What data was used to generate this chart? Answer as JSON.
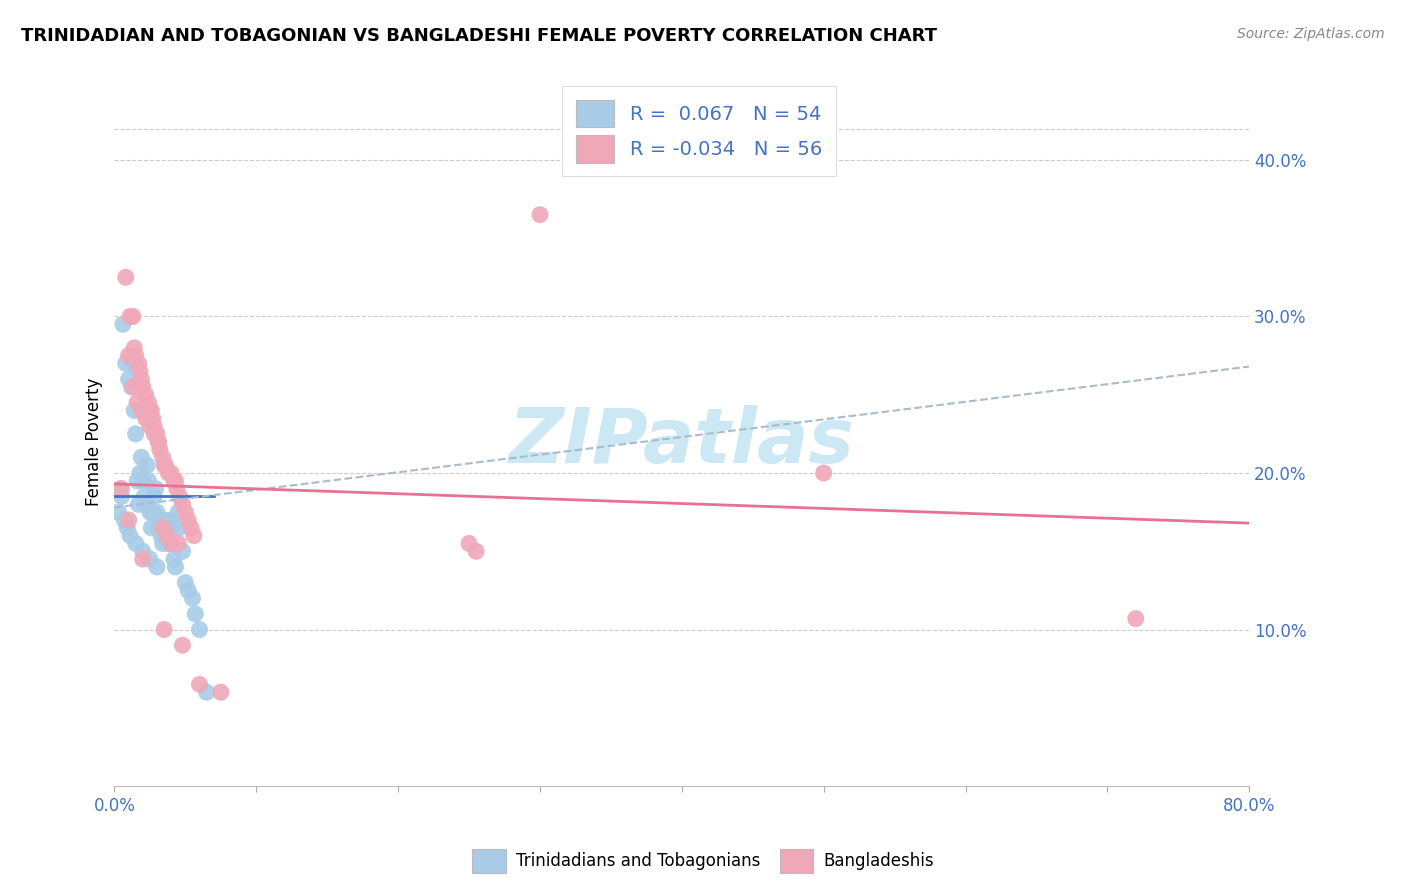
{
  "title": "TRINIDADIAN AND TOBAGONIAN VS BANGLADESHI FEMALE POVERTY CORRELATION CHART",
  "source": "Source: ZipAtlas.com",
  "ylabel": "Female Poverty",
  "yticks": [
    0.1,
    0.2,
    0.3,
    0.4
  ],
  "ytick_labels": [
    "10.0%",
    "20.0%",
    "30.0%",
    "40.0%"
  ],
  "xlim": [
    0.0,
    0.8
  ],
  "ylim": [
    0.0,
    0.44
  ],
  "legend1_r": "0.067",
  "legend1_n": "54",
  "legend2_r": "-0.034",
  "legend2_n": "56",
  "color_blue": "#A8CCE8",
  "color_pink": "#F0A8B8",
  "color_trend_blue_solid": "#4472C4",
  "color_trend_blue_dashed": "#AACCDD",
  "color_trend_pink": "#E87090",
  "watermark": "ZIPatlas",
  "watermark_color": "#CCE8F4",
  "blue_x": [
    0.004,
    0.006,
    0.008,
    0.01,
    0.012,
    0.013,
    0.014,
    0.015,
    0.016,
    0.017,
    0.018,
    0.019,
    0.02,
    0.021,
    0.022,
    0.023,
    0.024,
    0.025,
    0.026,
    0.027,
    0.028,
    0.029,
    0.03,
    0.031,
    0.032,
    0.033,
    0.034,
    0.035,
    0.036,
    0.037,
    0.038,
    0.039,
    0.04,
    0.041,
    0.042,
    0.043,
    0.045,
    0.046,
    0.048,
    0.05,
    0.052,
    0.055,
    0.057,
    0.06,
    0.003,
    0.005,
    0.007,
    0.009,
    0.011,
    0.015,
    0.02,
    0.025,
    0.03,
    0.065
  ],
  "blue_y": [
    0.19,
    0.295,
    0.27,
    0.26,
    0.255,
    0.27,
    0.24,
    0.225,
    0.195,
    0.18,
    0.2,
    0.21,
    0.195,
    0.185,
    0.18,
    0.205,
    0.195,
    0.175,
    0.165,
    0.175,
    0.185,
    0.19,
    0.175,
    0.165,
    0.17,
    0.16,
    0.155,
    0.17,
    0.165,
    0.16,
    0.155,
    0.155,
    0.17,
    0.165,
    0.145,
    0.14,
    0.175,
    0.165,
    0.15,
    0.13,
    0.125,
    0.12,
    0.11,
    0.1,
    0.175,
    0.185,
    0.17,
    0.165,
    0.16,
    0.155,
    0.15,
    0.145,
    0.14,
    0.06
  ],
  "pink_x": [
    0.005,
    0.008,
    0.011,
    0.013,
    0.014,
    0.015,
    0.017,
    0.018,
    0.019,
    0.02,
    0.022,
    0.024,
    0.025,
    0.026,
    0.027,
    0.028,
    0.03,
    0.031,
    0.032,
    0.034,
    0.035,
    0.036,
    0.038,
    0.04,
    0.042,
    0.043,
    0.044,
    0.046,
    0.048,
    0.05,
    0.052,
    0.054,
    0.056,
    0.01,
    0.013,
    0.016,
    0.019,
    0.022,
    0.025,
    0.028,
    0.031,
    0.034,
    0.037,
    0.04,
    0.25,
    0.255,
    0.3,
    0.5,
    0.01,
    0.02,
    0.035,
    0.048,
    0.06,
    0.075,
    0.045,
    0.72
  ],
  "pink_y": [
    0.19,
    0.325,
    0.3,
    0.3,
    0.28,
    0.275,
    0.27,
    0.265,
    0.26,
    0.255,
    0.25,
    0.245,
    0.24,
    0.24,
    0.235,
    0.23,
    0.225,
    0.22,
    0.215,
    0.21,
    0.205,
    0.205,
    0.2,
    0.2,
    0.195,
    0.195,
    0.19,
    0.185,
    0.18,
    0.175,
    0.17,
    0.165,
    0.16,
    0.275,
    0.255,
    0.245,
    0.24,
    0.235,
    0.23,
    0.225,
    0.22,
    0.165,
    0.16,
    0.155,
    0.155,
    0.15,
    0.365,
    0.2,
    0.17,
    0.145,
    0.1,
    0.09,
    0.065,
    0.06,
    0.155,
    0.107
  ]
}
